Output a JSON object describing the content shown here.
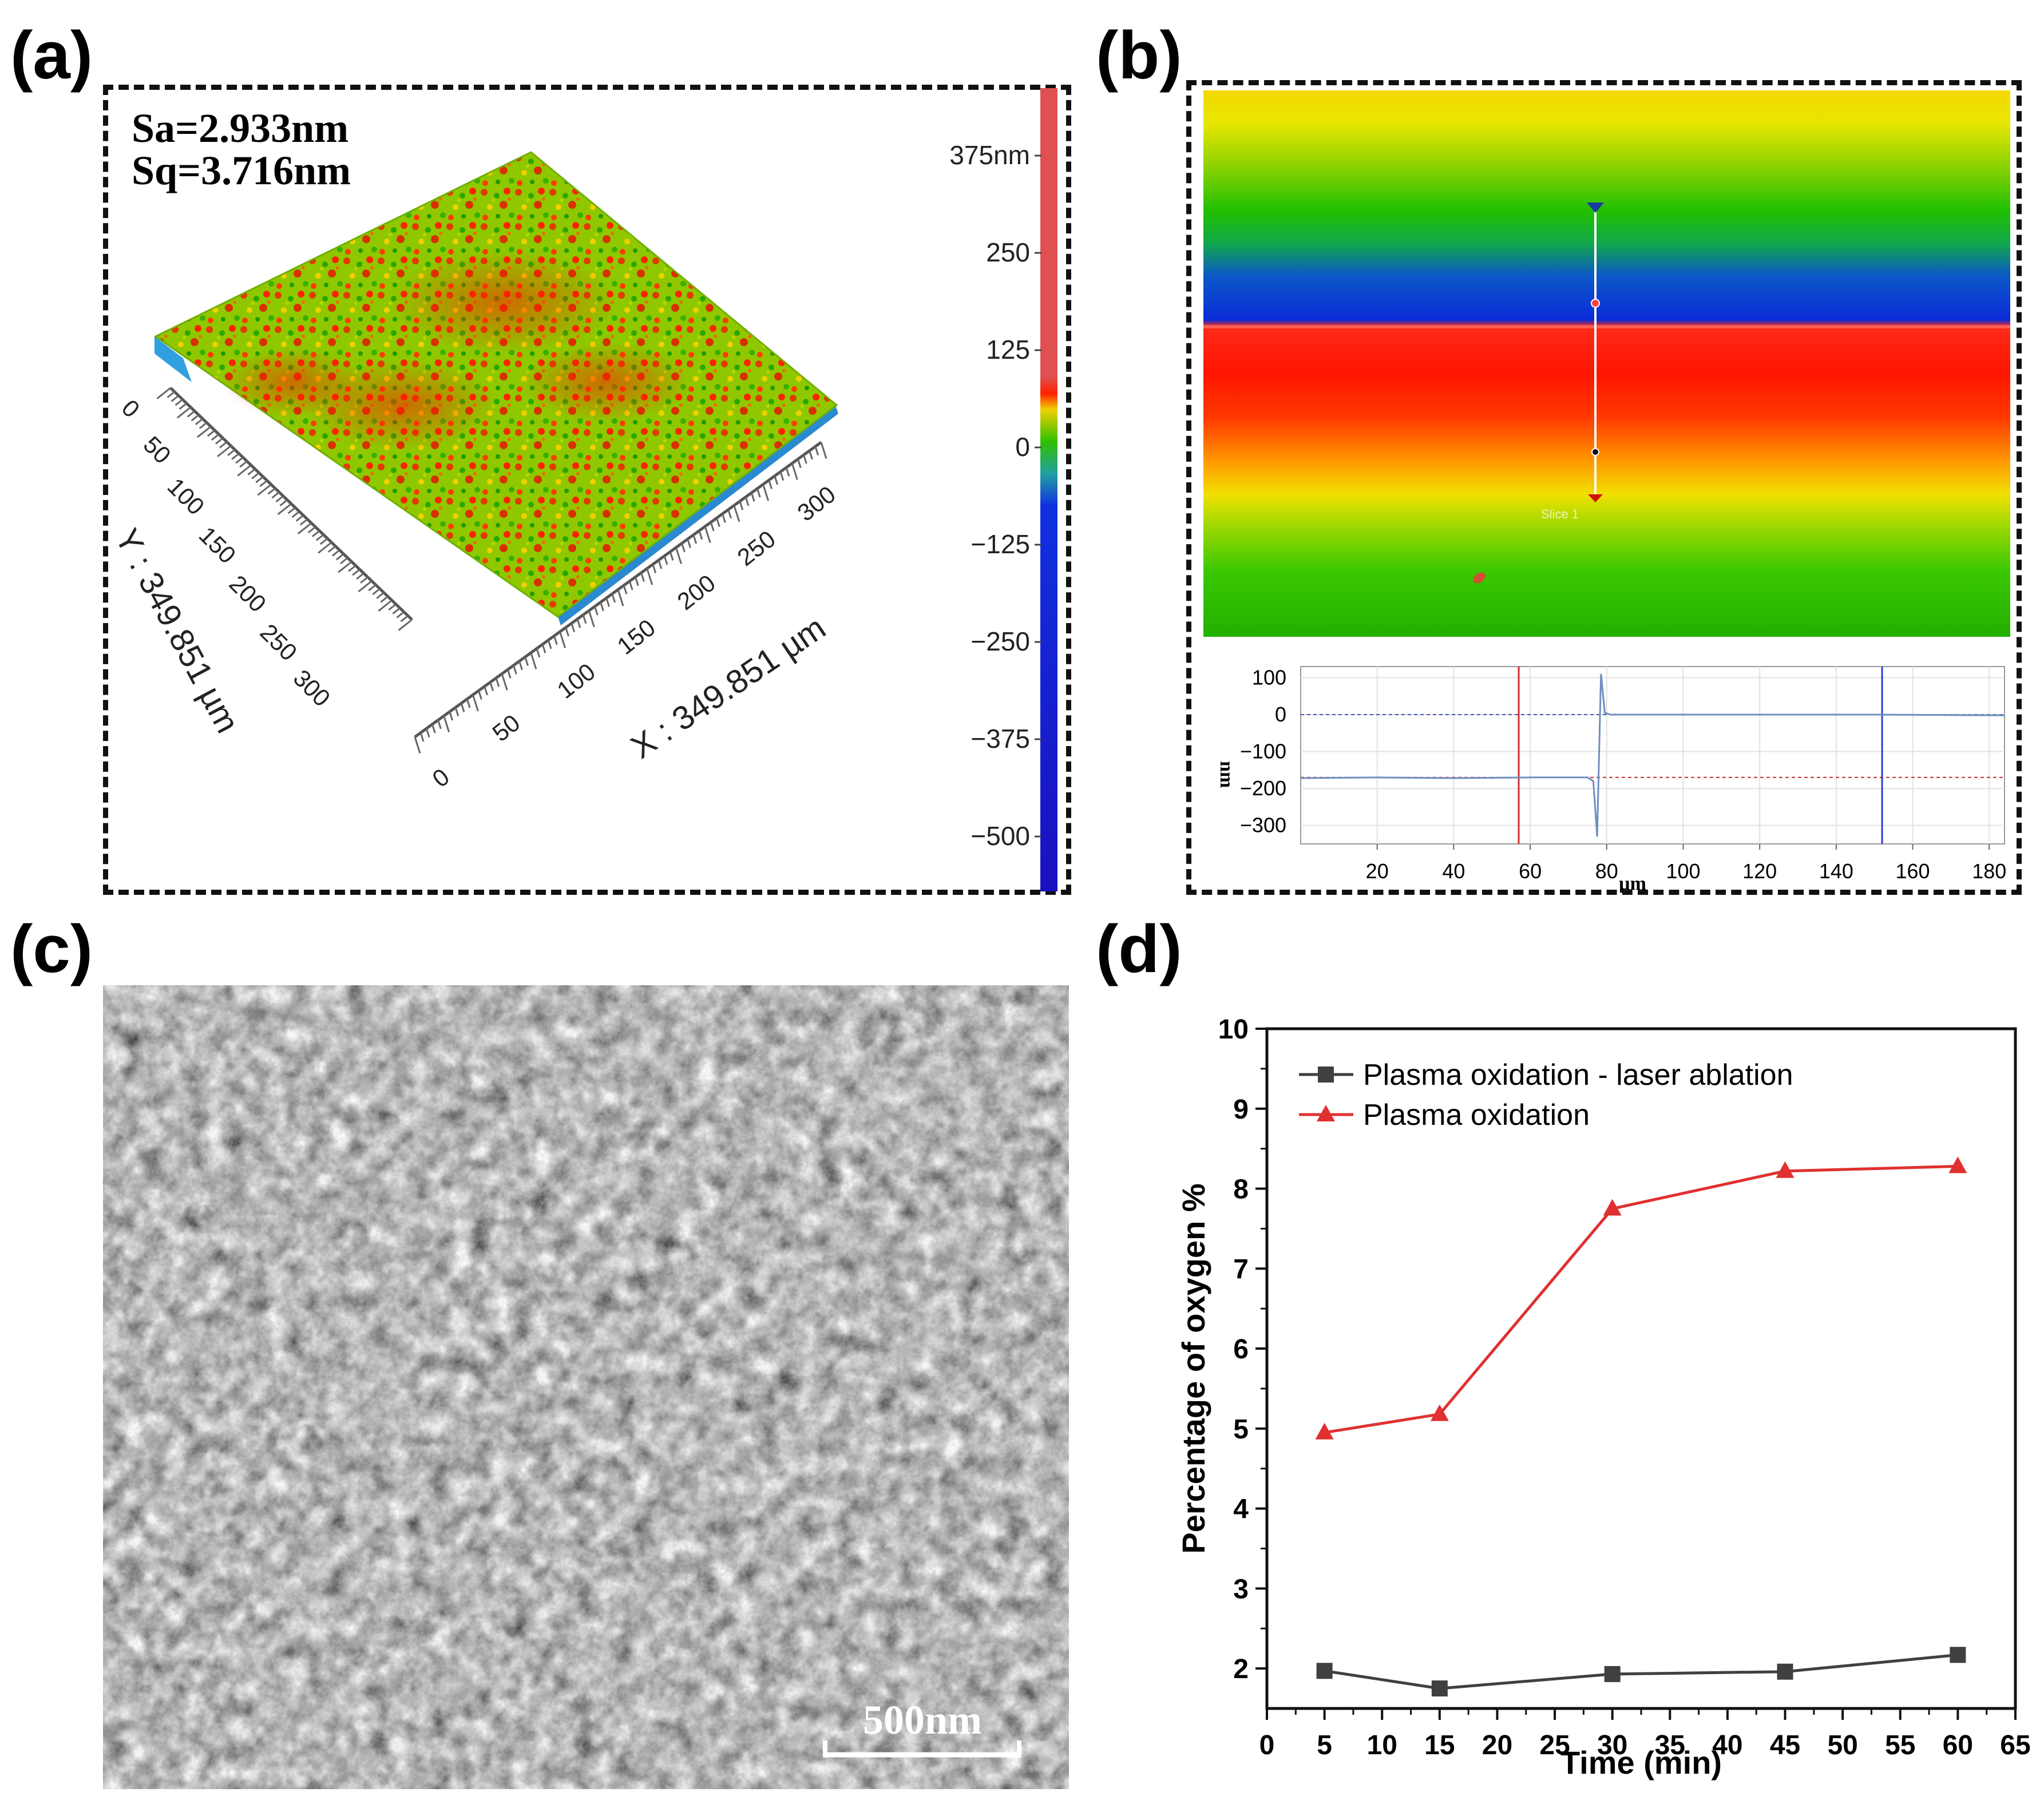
{
  "panels": {
    "a": {
      "label": "(a)",
      "sa": "Sa=2.933nm",
      "sq": "Sq=3.716nm",
      "x_axis_title": "X : 349.851 µm",
      "y_axis_title": "Y : 349.851 µm",
      "x_ticks": [
        "0",
        "50",
        "100",
        "150",
        "200",
        "250",
        "300"
      ],
      "y_ticks": [
        "0",
        "50",
        "100",
        "150",
        "200",
        "250",
        "300"
      ],
      "colorbar_ticks": [
        "375nm",
        "250",
        "125",
        "0",
        "-125",
        "-250",
        "-375",
        "-500"
      ]
    },
    "b": {
      "label": "(b)",
      "slice_label": "Slice 1",
      "profile_ylabel": "nm",
      "profile_xlabel": "µm"
    },
    "c": {
      "label": "(c)",
      "scale_bar": "500nm"
    },
    "d": {
      "label": "(d)"
    }
  },
  "colors": {
    "map_red": "#ff1a00",
    "map_green": "#2ec800",
    "map_blue": "#0a2bd8",
    "map_yellow": "#f3e600",
    "series_black": "#404040",
    "series_red": "#e03030"
  },
  "chart_data": [
    {
      "type": "line",
      "panel": "b",
      "title": "",
      "xlabel": "µm",
      "ylabel": "nm",
      "xlim": [
        0,
        184
      ],
      "ylim": [
        -350,
        130
      ],
      "x_ticks": [
        20,
        40,
        60,
        80,
        100,
        120,
        140,
        160,
        180
      ],
      "y_ticks": [
        100,
        0,
        -100,
        -200,
        -300
      ],
      "x_tick_labels": [
        "20",
        "40",
        "60",
        "80",
        "100",
        "120",
        "140",
        "160",
        "180"
      ],
      "y_tick_labels": [
        "100",
        "0",
        "-100",
        "-200",
        "-300"
      ],
      "series": [
        {
          "name": "profile",
          "color": "#6f8fc0",
          "x": [
            0,
            20,
            40,
            60,
            75,
            76.5,
            77.5,
            78.5,
            79.5,
            81,
            90,
            120,
            150,
            184
          ],
          "y": [
            -172,
            -170,
            -172,
            -170,
            -170,
            -180,
            -330,
            110,
            5,
            0,
            0,
            0,
            0,
            -2
          ]
        }
      ],
      "reference_lines": [
        {
          "name": "upper-level",
          "y": 0,
          "color": "#4055b0"
        },
        {
          "name": "lower-level",
          "y": -170,
          "color": "#c03030"
        }
      ],
      "cursors": [
        {
          "name": "red-cursor",
          "x": 57,
          "color": "#d03030"
        },
        {
          "name": "blue-cursor",
          "x": 152,
          "color": "#3040d0"
        }
      ]
    },
    {
      "type": "line",
      "panel": "d",
      "title": "",
      "xlabel": "Time (min)",
      "ylabel": "Percentage of oxygen %",
      "xlim": [
        0,
        65
      ],
      "ylim": [
        1.5,
        10
      ],
      "x_ticks": [
        0,
        5,
        10,
        15,
        20,
        25,
        30,
        35,
        40,
        45,
        50,
        55,
        60,
        65
      ],
      "y_ticks": [
        2,
        3,
        4,
        5,
        6,
        7,
        8,
        9,
        10
      ],
      "x_tick_labels": [
        "0",
        "5",
        "10",
        "15",
        "20",
        "25",
        "30",
        "35",
        "40",
        "45",
        "50",
        "55",
        "60",
        "65"
      ],
      "y_tick_labels": [
        "2",
        "3",
        "4",
        "5",
        "6",
        "7",
        "8",
        "9",
        "10"
      ],
      "legend_position": "top-left",
      "series": [
        {
          "name": "Plasma oxidation - laser ablation",
          "marker": "square",
          "color": "#404040",
          "x": [
            5,
            15,
            30,
            45,
            60
          ],
          "y": [
            1.97,
            1.75,
            1.93,
            1.96,
            2.17
          ]
        },
        {
          "name": "Plasma oxidation",
          "marker": "triangle",
          "color": "#e03030",
          "x": [
            5,
            15,
            30,
            45,
            60
          ],
          "y": [
            4.95,
            5.18,
            7.75,
            8.22,
            8.28
          ]
        }
      ]
    }
  ]
}
